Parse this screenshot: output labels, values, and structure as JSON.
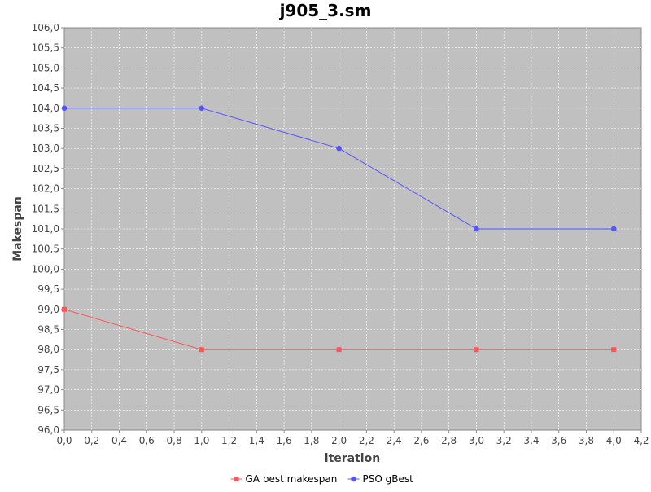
{
  "chart_data": {
    "type": "line",
    "title": "j905_3.sm",
    "xlabel": "iteration",
    "ylabel": "Makespan",
    "xlim": [
      0.0,
      4.2
    ],
    "ylim": [
      96.0,
      106.0
    ],
    "x_ticks": [
      "0,0",
      "0,2",
      "0,4",
      "0,6",
      "0,8",
      "1,0",
      "1,2",
      "1,4",
      "1,6",
      "1,8",
      "2,0",
      "2,2",
      "2,4",
      "2,6",
      "2,8",
      "3,0",
      "3,2",
      "3,4",
      "3,6",
      "3,8",
      "4,0",
      "4,2"
    ],
    "y_ticks": [
      "96,0",
      "96,5",
      "97,0",
      "97,5",
      "98,0",
      "98,5",
      "99,0",
      "99,5",
      "100,0",
      "100,5",
      "101,0",
      "101,5",
      "102,0",
      "102,5",
      "103,0",
      "103,5",
      "104,0",
      "104,5",
      "105,0",
      "105,5",
      "106,0"
    ],
    "grid": true,
    "legend_position": "bottom",
    "plot_background": "#c0c0c0",
    "series": [
      {
        "name": "GA best makespan",
        "color": "#ff5555",
        "marker": "square",
        "x": [
          0,
          1,
          2,
          3,
          4
        ],
        "y": [
          99.0,
          98.0,
          98.0,
          98.0,
          98.0
        ]
      },
      {
        "name": "PSO gBest",
        "color": "#5555ff",
        "marker": "circle",
        "x": [
          0,
          1,
          2,
          3,
          4
        ],
        "y": [
          104.0,
          104.0,
          103.0,
          101.0,
          101.0
        ]
      }
    ]
  }
}
